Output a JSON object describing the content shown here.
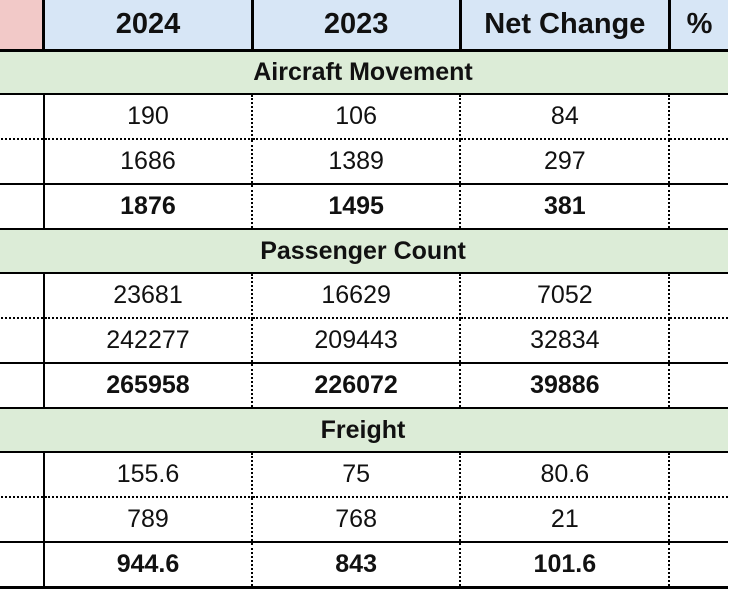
{
  "header": {
    "c0": "",
    "c1": "2024",
    "c2": "2023",
    "c3": "Net Change",
    "c4": "%"
  },
  "sections": [
    {
      "title": "Aircraft Movement",
      "rows": [
        [
          "190",
          "106",
          "84"
        ],
        [
          "1686",
          "1389",
          "297"
        ],
        [
          "1876",
          "1495",
          "381"
        ]
      ]
    },
    {
      "title": "Passenger Count",
      "rows": [
        [
          "23681",
          "16629",
          "7052"
        ],
        [
          "242277",
          "209443",
          "32834"
        ],
        [
          "265958",
          "226072",
          "39886"
        ]
      ]
    },
    {
      "title": "Freight",
      "rows": [
        [
          "155.6",
          "75",
          "80.6"
        ],
        [
          "789",
          "768",
          "21"
        ],
        [
          "944.6",
          "843",
          "101.6"
        ]
      ]
    }
  ],
  "colors": {
    "header_bg": "#d7e6f6",
    "section_bg": "#dcecd7",
    "corner_bg": "#f2c9c8"
  }
}
